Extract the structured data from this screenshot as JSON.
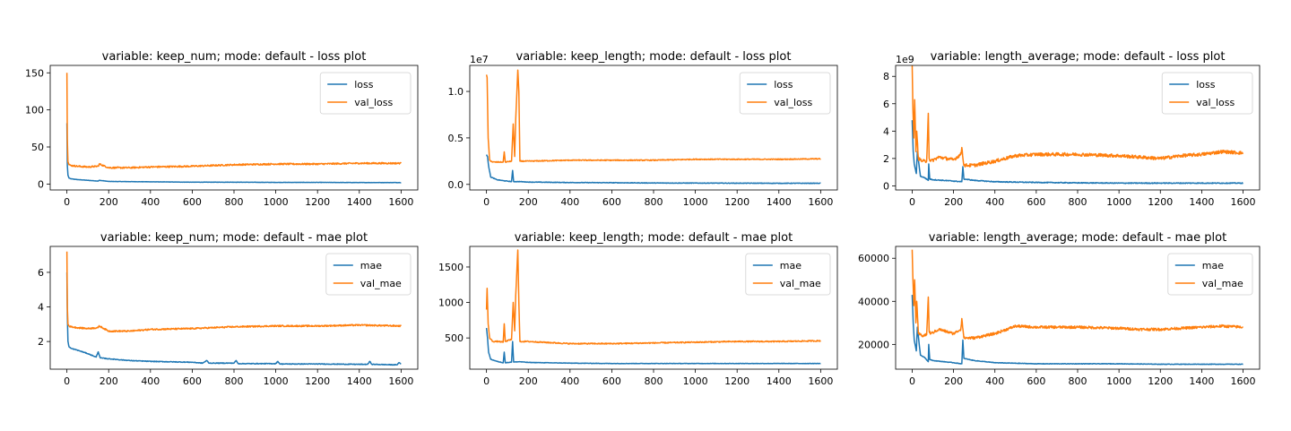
{
  "chart_data": [
    {
      "type": "line",
      "title": "variable: keep_num; mode: default - loss plot",
      "xlabel": "",
      "ylabel": "",
      "xlim": [
        -80,
        1680
      ],
      "ylim": [
        -8,
        160
      ],
      "xticks": [
        0,
        200,
        400,
        600,
        800,
        1000,
        1200,
        1400,
        1600
      ],
      "yticks": [
        0,
        50,
        100,
        150
      ],
      "ytick_labels": [
        "0",
        "50",
        "100",
        "150"
      ],
      "offset_label": "",
      "legend": "upper right",
      "series": [
        {
          "name": "loss",
          "color": "#1f77b4",
          "noise": 0.2,
          "x": [
            0,
            2,
            5,
            10,
            20,
            50,
            100,
            150,
            155,
            200,
            400,
            600,
            800,
            1000,
            1200,
            1400,
            1600
          ],
          "y": [
            82,
            25,
            12,
            8,
            7,
            6,
            5,
            4,
            5,
            3.5,
            3,
            2.5,
            2.5,
            2.2,
            2.2,
            2,
            2
          ]
        },
        {
          "name": "val_loss",
          "color": "#ff7f0e",
          "noise": 1.0,
          "x": [
            0,
            2,
            5,
            10,
            20,
            50,
            100,
            150,
            155,
            200,
            300,
            400,
            600,
            800,
            1000,
            1200,
            1400,
            1600
          ],
          "y": [
            150,
            60,
            30,
            26,
            25,
            24,
            23,
            24,
            27,
            22,
            22,
            23,
            24,
            26,
            27,
            27,
            28,
            28
          ]
        }
      ]
    },
    {
      "type": "line",
      "title": "variable: keep_length; mode: default - loss plot",
      "xlabel": "",
      "ylabel": "",
      "xlim": [
        -80,
        1680
      ],
      "ylim": [
        -0.6,
        12.8
      ],
      "xticks": [
        0,
        200,
        400,
        600,
        800,
        1000,
        1200,
        1400,
        1600
      ],
      "yticks": [
        0,
        5,
        10
      ],
      "ytick_labels": [
        "0.0",
        "0.5",
        "1.0"
      ],
      "offset_label": "1e7",
      "legend": "upper right",
      "series": [
        {
          "name": "loss",
          "color": "#1f77b4",
          "noise": 0.03,
          "x": [
            0,
            5,
            10,
            20,
            50,
            80,
            100,
            120,
            125,
            130,
            160,
            200,
            400,
            600,
            800,
            1000,
            1200,
            1400,
            1600
          ],
          "y": [
            3.2,
            3.0,
            2.0,
            0.8,
            0.5,
            0.4,
            0.35,
            0.3,
            1.5,
            0.3,
            0.3,
            0.25,
            0.2,
            0.18,
            0.15,
            0.14,
            0.13,
            0.12,
            0.12
          ]
        },
        {
          "name": "val_loss",
          "color": "#ff7f0e",
          "noise": 0.05,
          "x": [
            0,
            3,
            8,
            15,
            30,
            60,
            80,
            85,
            90,
            120,
            128,
            135,
            140,
            150,
            155,
            160,
            200,
            400,
            600,
            800,
            1000,
            1200,
            1400,
            1600
          ],
          "y": [
            11.8,
            11.5,
            5.0,
            2.6,
            2.4,
            2.4,
            2.4,
            3.5,
            2.4,
            2.5,
            6.5,
            3.0,
            7.0,
            12.3,
            10.0,
            2.5,
            2.5,
            2.6,
            2.6,
            2.6,
            2.7,
            2.7,
            2.7,
            2.75
          ]
        }
      ]
    },
    {
      "type": "line",
      "title": "variable: length_average; mode: default - loss plot",
      "xlabel": "",
      "ylabel": "",
      "xlim": [
        -80,
        1680
      ],
      "ylim": [
        -0.3,
        8.8
      ],
      "xticks": [
        0,
        200,
        400,
        600,
        800,
        1000,
        1200,
        1400,
        1600
      ],
      "yticks": [
        0,
        2,
        4,
        6,
        8
      ],
      "ytick_labels": [
        "0",
        "2",
        "4",
        "6",
        "8"
      ],
      "offset_label": "1e9",
      "legend": "upper right",
      "series": [
        {
          "name": "loss",
          "color": "#1f77b4",
          "noise": 0.03,
          "x": [
            0,
            5,
            10,
            20,
            25,
            40,
            60,
            78,
            80,
            85,
            100,
            150,
            200,
            240,
            245,
            250,
            300,
            400,
            600,
            800,
            1000,
            1200,
            1400,
            1600
          ],
          "y": [
            4.8,
            2.5,
            1.6,
            0.9,
            2.5,
            0.7,
            0.6,
            0.4,
            1.6,
            0.5,
            0.45,
            0.4,
            0.35,
            0.3,
            1.4,
            0.5,
            0.4,
            0.3,
            0.25,
            0.22,
            0.2,
            0.2,
            0.2,
            0.2
          ]
        },
        {
          "name": "val_loss",
          "color": "#ff7f0e",
          "noise": 0.12,
          "x": [
            0,
            3,
            8,
            12,
            18,
            22,
            30,
            50,
            70,
            78,
            82,
            90,
            130,
            200,
            235,
            240,
            250,
            300,
            400,
            500,
            600,
            800,
            1000,
            1100,
            1200,
            1300,
            1400,
            1500,
            1600
          ],
          "y": [
            8.8,
            6.0,
            3.5,
            6.3,
            2.5,
            4.0,
            2.0,
            1.8,
            1.8,
            5.3,
            2.0,
            1.8,
            2.1,
            1.9,
            2.3,
            2.8,
            1.5,
            1.5,
            1.8,
            2.2,
            2.3,
            2.3,
            2.2,
            2.1,
            2.0,
            2.2,
            2.3,
            2.5,
            2.4
          ]
        }
      ]
    },
    {
      "type": "line",
      "title": "variable: keep_num; mode: default - mae plot",
      "xlabel": "",
      "ylabel": "",
      "xlim": [
        -80,
        1680
      ],
      "ylim": [
        0.4,
        7.5
      ],
      "xticks": [
        0,
        200,
        400,
        600,
        800,
        1000,
        1200,
        1400,
        1600
      ],
      "yticks": [
        2,
        4,
        6
      ],
      "ytick_labels": [
        "2",
        "4",
        "6"
      ],
      "offset_label": "",
      "legend": "upper right",
      "series": [
        {
          "name": "mae",
          "color": "#1f77b4",
          "noise": 0.02,
          "x": [
            0,
            2,
            5,
            10,
            20,
            50,
            100,
            140,
            150,
            160,
            200,
            300,
            400,
            600,
            650,
            670,
            680,
            800,
            810,
            820,
            1000,
            1010,
            1020,
            1200,
            1400,
            1440,
            1450,
            1460,
            1580,
            1590,
            1600
          ],
          "y": [
            6.0,
            3.5,
            2.0,
            1.7,
            1.6,
            1.5,
            1.3,
            1.1,
            1.4,
            1.05,
            1.0,
            0.9,
            0.85,
            0.8,
            0.75,
            0.9,
            0.75,
            0.75,
            0.9,
            0.72,
            0.72,
            0.85,
            0.7,
            0.7,
            0.68,
            0.68,
            0.85,
            0.68,
            0.65,
            0.78,
            0.7
          ]
        },
        {
          "name": "val_mae",
          "color": "#ff7f0e",
          "noise": 0.04,
          "x": [
            0,
            2,
            5,
            10,
            20,
            50,
            100,
            150,
            155,
            200,
            300,
            400,
            600,
            800,
            1000,
            1200,
            1400,
            1600
          ],
          "y": [
            7.2,
            4.0,
            3.0,
            2.9,
            2.85,
            2.8,
            2.75,
            2.8,
            2.9,
            2.6,
            2.6,
            2.7,
            2.75,
            2.85,
            2.9,
            2.9,
            2.95,
            2.9
          ]
        }
      ]
    },
    {
      "type": "line",
      "title": "variable: keep_length; mode: default - mae plot",
      "xlabel": "",
      "ylabel": "",
      "xlim": [
        -80,
        1680
      ],
      "ylim": [
        60,
        1790
      ],
      "xticks": [
        0,
        200,
        400,
        600,
        800,
        1000,
        1200,
        1400,
        1600
      ],
      "yticks": [
        500,
        1000,
        1500
      ],
      "ytick_labels": [
        "500",
        "1000",
        "1500"
      ],
      "offset_label": "",
      "legend": "upper right",
      "series": [
        {
          "name": "mae",
          "color": "#1f77b4",
          "noise": 3,
          "x": [
            0,
            5,
            10,
            20,
            50,
            80,
            85,
            90,
            120,
            125,
            130,
            160,
            200,
            400,
            600,
            800,
            1000,
            1200,
            1400,
            1600
          ],
          "y": [
            640,
            500,
            300,
            200,
            170,
            150,
            300,
            150,
            160,
            450,
            160,
            165,
            155,
            145,
            140,
            140,
            140,
            140,
            140,
            140
          ]
        },
        {
          "name": "val_mae",
          "color": "#ff7f0e",
          "noise": 8,
          "x": [
            0,
            3,
            8,
            15,
            30,
            60,
            80,
            85,
            90,
            120,
            128,
            135,
            140,
            150,
            155,
            160,
            200,
            400,
            600,
            800,
            1000,
            1200,
            1400,
            1600
          ],
          "y": [
            900,
            1200,
            700,
            500,
            450,
            450,
            440,
            700,
            450,
            480,
            1000,
            600,
            1100,
            1740,
            1000,
            450,
            450,
            420,
            420,
            430,
            440,
            450,
            450,
            460
          ]
        }
      ]
    },
    {
      "type": "line",
      "title": "variable: length_average; mode: default - mae plot",
      "xlabel": "",
      "ylabel": "",
      "xlim": [
        -80,
        1680
      ],
      "ylim": [
        8500,
        65500
      ],
      "xticks": [
        0,
        200,
        400,
        600,
        800,
        1000,
        1200,
        1400,
        1600
      ],
      "yticks": [
        20000,
        40000,
        60000
      ],
      "ytick_labels": [
        "20000",
        "40000",
        "60000"
      ],
      "offset_label": "",
      "legend": "upper right",
      "series": [
        {
          "name": "mae",
          "color": "#1f77b4",
          "noise": 120,
          "x": [
            0,
            5,
            10,
            20,
            25,
            40,
            60,
            78,
            80,
            85,
            100,
            150,
            200,
            240,
            245,
            250,
            300,
            400,
            600,
            800,
            1000,
            1200,
            1400,
            1600
          ],
          "y": [
            43000,
            30000,
            22000,
            17000,
            28000,
            15000,
            14000,
            12000,
            20000,
            13000,
            12500,
            12000,
            11500,
            11000,
            22000,
            13500,
            12500,
            11500,
            11000,
            11000,
            11000,
            10800,
            10800,
            10800
          ]
        },
        {
          "name": "val_mae",
          "color": "#ff7f0e",
          "noise": 600,
          "x": [
            0,
            3,
            8,
            12,
            18,
            22,
            30,
            50,
            70,
            78,
            82,
            90,
            130,
            200,
            235,
            240,
            250,
            300,
            400,
            500,
            600,
            800,
            1000,
            1100,
            1200,
            1300,
            1400,
            1500,
            1600
          ],
          "y": [
            64000,
            52000,
            38000,
            50000,
            30000,
            40000,
            25000,
            24000,
            24500,
            42000,
            26000,
            25000,
            27000,
            25000,
            27000,
            32000,
            23000,
            23000,
            25000,
            28500,
            28000,
            28000,
            27500,
            27000,
            27000,
            27500,
            28000,
            28500,
            28000
          ]
        }
      ]
    }
  ]
}
